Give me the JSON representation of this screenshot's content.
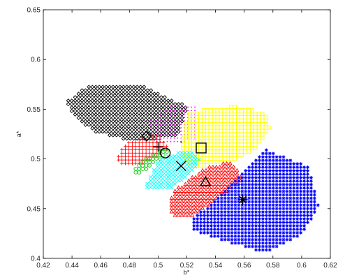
{
  "chart_data": {
    "type": "scatter",
    "title": "",
    "xlabel": "b*",
    "ylabel": "a*",
    "xlim": [
      0.42,
      0.62
    ],
    "ylim": [
      0.4,
      0.65
    ],
    "xticks": [
      "0.42",
      "0.44",
      "0.46",
      "0.48",
      "0.5",
      "0.52",
      "0.54",
      "0.56",
      "0.58",
      "0.6",
      "0.62"
    ],
    "yticks": [
      "0.4",
      "0.45",
      "0.5",
      "0.55",
      "0.6",
      "0.65"
    ],
    "grid": false,
    "clusters": [
      {
        "marker": "diamond",
        "color": "#000000",
        "region": [
          [
            0.435,
            0.557
          ],
          [
            0.452,
            0.574
          ],
          [
            0.49,
            0.573
          ],
          [
            0.52,
            0.553
          ],
          [
            0.514,
            0.524
          ],
          [
            0.485,
            0.517
          ],
          [
            0.455,
            0.527
          ],
          [
            0.442,
            0.543
          ]
        ],
        "centroid": [
          0.492,
          0.523
        ]
      },
      {
        "marker": "dot",
        "color": "#ff00ff",
        "region": [
          [
            0.492,
            0.538
          ],
          [
            0.512,
            0.557
          ],
          [
            0.526,
            0.553
          ],
          [
            0.528,
            0.52
          ],
          [
            0.51,
            0.514
          ],
          [
            0.497,
            0.517
          ]
        ],
        "centroid": [
          0.516,
          0.517
        ]
      },
      {
        "marker": "square",
        "color": "#ffff00",
        "region": [
          [
            0.522,
            0.547
          ],
          [
            0.552,
            0.553
          ],
          [
            0.574,
            0.547
          ],
          [
            0.578,
            0.532
          ],
          [
            0.568,
            0.51
          ],
          [
            0.55,
            0.497
          ],
          [
            0.522,
            0.49
          ],
          [
            0.515,
            0.51
          ]
        ],
        "centroid": [
          0.53,
          0.511
        ]
      },
      {
        "marker": "plus",
        "color": "#ff0000",
        "region": [
          [
            0.47,
            0.499
          ],
          [
            0.478,
            0.518
          ],
          [
            0.5,
            0.526
          ],
          [
            0.508,
            0.51
          ],
          [
            0.49,
            0.495
          ],
          [
            0.475,
            0.492
          ]
        ],
        "centroid": [
          0.5,
          0.512
        ]
      },
      {
        "marker": "circle",
        "color": "#00cc00",
        "region": [
          [
            0.482,
            0.487
          ],
          [
            0.487,
            0.497
          ],
          [
            0.503,
            0.51
          ],
          [
            0.51,
            0.509
          ],
          [
            0.497,
            0.495
          ],
          [
            0.486,
            0.483
          ]
        ],
        "centroid": [
          0.505,
          0.506
        ]
      },
      {
        "marker": "x",
        "color": "#00ffff",
        "region": [
          [
            0.49,
            0.47
          ],
          [
            0.5,
            0.5
          ],
          [
            0.52,
            0.51
          ],
          [
            0.53,
            0.5
          ],
          [
            0.52,
            0.48
          ],
          [
            0.505,
            0.468
          ]
        ],
        "centroid": [
          0.516,
          0.493
        ]
      },
      {
        "marker": "triangle",
        "color": "#ff0000",
        "region": [
          [
            0.507,
            0.453
          ],
          [
            0.512,
            0.47
          ],
          [
            0.535,
            0.493
          ],
          [
            0.55,
            0.497
          ],
          [
            0.56,
            0.48
          ],
          [
            0.535,
            0.452
          ],
          [
            0.52,
            0.44
          ],
          [
            0.51,
            0.443
          ]
        ],
        "centroid": [
          0.533,
          0.477
        ]
      },
      {
        "marker": "star",
        "color": "#0000ff",
        "region": [
          [
            0.525,
            0.44
          ],
          [
            0.543,
            0.465
          ],
          [
            0.56,
            0.49
          ],
          [
            0.574,
            0.51
          ],
          [
            0.605,
            0.492
          ],
          [
            0.612,
            0.452
          ],
          [
            0.6,
            0.423
          ],
          [
            0.575,
            0.405
          ],
          [
            0.545,
            0.418
          ],
          [
            0.525,
            0.427
          ]
        ],
        "centroid": [
          0.559,
          0.459
        ]
      }
    ]
  }
}
